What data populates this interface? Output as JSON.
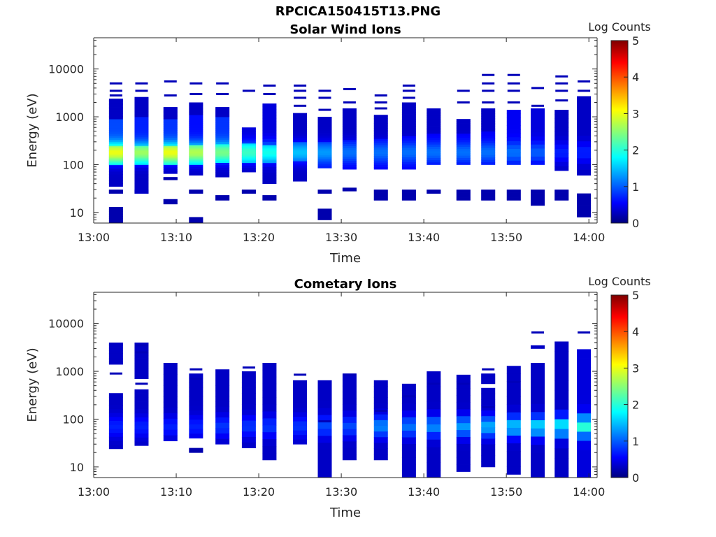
{
  "figure_title": "RPCICA150415T13.PNG",
  "colors": {
    "background": "#ffffff",
    "axes": "#262626",
    "colormap": [
      "#00007f",
      "#0000ff",
      "#00ffff",
      "#ffff00",
      "#ff0000",
      "#7f0000"
    ]
  },
  "chart_data": [
    {
      "type": "heatmap",
      "title": "Solar Wind Ions",
      "xlabel": "Time",
      "ylabel": "Energy (eV)",
      "x_ticks": [
        "13:00",
        "13:10",
        "13:20",
        "13:30",
        "13:40",
        "13:50",
        "14:00"
      ],
      "y_ticks": [
        "10",
        "100",
        "1000",
        "10000"
      ],
      "xlim": [
        "13:00",
        "14:01"
      ],
      "ylim": [
        6,
        45000
      ],
      "y_scale": "log",
      "colorbar": {
        "label": "Log Counts",
        "ticks": [
          "0",
          "1",
          "2",
          "3",
          "4",
          "5"
        ],
        "range": [
          0,
          5
        ]
      },
      "columns": [
        {
          "t": 2.7,
          "bands": [
            [
              6,
              13,
              0.2
            ],
            [
              25,
              30,
              0.2
            ],
            [
              35,
              260,
              0.3
            ],
            [
              100,
              250,
              1.4
            ],
            [
              250,
              900,
              0.9
            ],
            [
              900,
              2400,
              0.3
            ]
          ],
          "lines": [
            2800,
            3500,
            5000
          ],
          "flux": 1.6
        },
        {
          "t": 5.8,
          "bands": [
            [
              25,
              30,
              0.2
            ],
            [
              25,
              220,
              0.3
            ],
            [
              100,
              250,
              1.3
            ],
            [
              250,
              1000,
              0.7
            ],
            [
              1000,
              2600,
              0.3
            ]
          ],
          "lines": [
            3500,
            5000
          ],
          "flux": 1.3
        },
        {
          "t": 9.3,
          "bands": [
            [
              15,
              19,
              0.2
            ],
            [
              48,
              55,
              0.2
            ],
            [
              65,
              250,
              0.3
            ],
            [
              100,
              250,
              1.5
            ],
            [
              250,
              900,
              0.8
            ],
            [
              900,
              1600,
              0.3
            ]
          ],
          "lines": [
            2800,
            5500
          ],
          "flux": 1.5
        },
        {
          "t": 12.4,
          "bands": [
            [
              6,
              8,
              0.2
            ],
            [
              25,
              30,
              0.2
            ],
            [
              60,
              250,
              0.3
            ],
            [
              100,
              260,
              1.3
            ],
            [
              260,
              1100,
              0.6
            ],
            [
              1100,
              2000,
              0.3
            ]
          ],
          "lines": [
            3000,
            5000
          ],
          "flux": 1.4
        },
        {
          "t": 15.6,
          "bands": [
            [
              18,
              23,
              0.2
            ],
            [
              55,
              270,
              0.3
            ],
            [
              110,
              270,
              1.2
            ],
            [
              270,
              1000,
              0.8
            ],
            [
              1000,
              1600,
              0.3
            ]
          ],
          "lines": [
            3000,
            5000
          ],
          "flux": 1.2
        },
        {
          "t": 18.8,
          "bands": [
            [
              25,
              30,
              0.2
            ],
            [
              70,
              280,
              0.3
            ],
            [
              110,
              280,
              1.1
            ],
            [
              280,
              600,
              0.4
            ]
          ],
          "lines": [
            3500
          ],
          "flux": 1.0
        },
        {
          "t": 21.3,
          "bands": [
            [
              18,
              23,
              0.2
            ],
            [
              40,
              260,
              0.3
            ],
            [
              110,
              260,
              0.9
            ],
            [
              260,
              1900,
              0.4
            ]
          ],
          "lines": [
            3000,
            4500
          ],
          "flux": 1.0
        },
        {
          "t": 25.0,
          "bands": [
            [
              45,
              120,
              0.3
            ],
            [
              120,
              300,
              0.7
            ],
            [
              300,
              1200,
              0.3
            ]
          ],
          "lines": [
            1700,
            2500,
            3500,
            4500
          ],
          "flux": 0.8
        },
        {
          "t": 28.0,
          "bands": [
            [
              7,
              12,
              0.2
            ],
            [
              25,
              30,
              0.2
            ],
            [
              85,
              300,
              0.6
            ],
            [
              300,
              1000,
              0.3
            ]
          ],
          "lines": [
            1400,
            2500,
            3500
          ],
          "flux": 0.7
        },
        {
          "t": 31.0,
          "bands": [
            [
              28,
              33,
              0.2
            ],
            [
              80,
              330,
              0.5
            ],
            [
              330,
              1500,
              0.3
            ]
          ],
          "lines": [
            2000,
            3800
          ],
          "flux": 0.6
        },
        {
          "t": 34.8,
          "bands": [
            [
              18,
              30,
              0.2
            ],
            [
              80,
              350,
              0.5
            ],
            [
              350,
              1100,
              0.3
            ]
          ],
          "lines": [
            1500,
            2000,
            2800
          ],
          "flux": 0.6
        },
        {
          "t": 38.2,
          "bands": [
            [
              18,
              30,
              0.2
            ],
            [
              80,
              400,
              0.5
            ],
            [
              400,
              2000,
              0.3
            ]
          ],
          "lines": [
            2500,
            3500,
            4500
          ],
          "flux": 0.6
        },
        {
          "t": 41.2,
          "bands": [
            [
              25,
              30,
              0.2
            ],
            [
              100,
              450,
              0.5
            ],
            [
              450,
              1500,
              0.3
            ]
          ],
          "lines": [],
          "flux": 0.6
        },
        {
          "t": 44.8,
          "bands": [
            [
              18,
              30,
              0.2
            ],
            [
              100,
              450,
              0.5
            ],
            [
              450,
              900,
              0.3
            ]
          ],
          "lines": [
            2000,
            3500
          ],
          "flux": 0.6
        },
        {
          "t": 47.8,
          "bands": [
            [
              18,
              30,
              0.2
            ],
            [
              100,
              500,
              0.5
            ],
            [
              500,
              1500,
              0.3
            ]
          ],
          "lines": [
            2000,
            3500,
            5000,
            7500
          ],
          "flux": 0.6
        },
        {
          "t": 50.9,
          "bands": [
            [
              18,
              30,
              0.2
            ],
            [
              100,
              1400,
              0.5
            ]
          ],
          "lines": [
            2000,
            3500,
            5000,
            7500
          ],
          "flux": 0.6
        },
        {
          "t": 53.8,
          "bands": [
            [
              14,
              30,
              0.2
            ],
            [
              100,
              1500,
              0.4
            ]
          ],
          "lines": [
            1700,
            4000
          ],
          "flux": 0.6
        },
        {
          "t": 56.7,
          "bands": [
            [
              18,
              30,
              0.2
            ],
            [
              75,
              1400,
              0.3
            ]
          ],
          "lines": [
            2200,
            3500,
            5000,
            7000
          ],
          "flux": 0.4
        },
        {
          "t": 59.4,
          "bands": [
            [
              8,
              25,
              0.2
            ],
            [
              60,
              2700,
              0.3
            ]
          ],
          "lines": [
            3500,
            5500
          ],
          "flux": 0.4
        }
      ]
    },
    {
      "type": "heatmap",
      "title": "Cometary Ions",
      "xlabel": "Time",
      "ylabel": "Energy (eV)",
      "x_ticks": [
        "13:00",
        "13:10",
        "13:20",
        "13:30",
        "13:40",
        "13:50",
        "14:00"
      ],
      "y_ticks": [
        "10",
        "100",
        "1000",
        "10000"
      ],
      "xlim": [
        "13:00",
        "14:01"
      ],
      "ylim": [
        6,
        45000
      ],
      "y_scale": "log",
      "colorbar": {
        "label": "Log Counts",
        "ticks": [
          "0",
          "1",
          "2",
          "3",
          "4",
          "5"
        ],
        "range": [
          0,
          5
        ]
      },
      "columns": [
        {
          "t": 2.7,
          "bands": [
            [
              24,
              350,
              0.3
            ],
            [
              1400,
              4000,
              0.3
            ]
          ],
          "lines": [
            900
          ],
          "flux": 0.4
        },
        {
          "t": 5.8,
          "bands": [
            [
              28,
              420,
              0.3
            ],
            [
              700,
              4000,
              0.3
            ]
          ],
          "lines": [
            2500,
            3500,
            550
          ],
          "flux": 0.4
        },
        {
          "t": 9.3,
          "bands": [
            [
              35,
              1500,
              0.3
            ]
          ],
          "lines": [],
          "flux": 0.4
        },
        {
          "t": 12.4,
          "bands": [
            [
              20,
              25,
              0.2
            ],
            [
              40,
              900,
              0.3
            ]
          ],
          "lines": [
            700,
            1100
          ],
          "flux": 0.4
        },
        {
          "t": 15.6,
          "bands": [
            [
              30,
              1100,
              0.3
            ]
          ],
          "lines": [],
          "flux": 0.5
        },
        {
          "t": 18.8,
          "bands": [
            [
              25,
              1000,
              0.3
            ]
          ],
          "lines": [
            1200
          ],
          "flux": 0.5
        },
        {
          "t": 21.3,
          "bands": [
            [
              14,
              1500,
              0.3
            ]
          ],
          "lines": [],
          "flux": 0.5
        },
        {
          "t": 25.0,
          "bands": [
            [
              30,
              650,
              0.3
            ]
          ],
          "lines": [
            850
          ],
          "flux": 0.5
        },
        {
          "t": 28.0,
          "bands": [
            [
              6,
              650,
              0.3
            ]
          ],
          "lines": [
            90
          ],
          "flux": 0.6
        },
        {
          "t": 31.0,
          "bands": [
            [
              14,
              900,
              0.3
            ]
          ],
          "lines": [
            850
          ],
          "flux": 0.6
        },
        {
          "t": 34.8,
          "bands": [
            [
              14,
              650,
              0.3
            ]
          ],
          "lines": [
            150
          ],
          "flux": 0.9
        },
        {
          "t": 38.2,
          "bands": [
            [
              6,
              550,
              0.3
            ]
          ],
          "lines": [
            300
          ],
          "flux": 0.8
        },
        {
          "t": 41.2,
          "bands": [
            [
              6,
              1000,
              0.3
            ]
          ],
          "lines": [
            550
          ],
          "flux": 0.9
        },
        {
          "t": 44.8,
          "bands": [
            [
              8,
              850,
              0.3
            ]
          ],
          "lines": [
            550
          ],
          "flux": 1.0
        },
        {
          "t": 47.8,
          "bands": [
            [
              10,
              450,
              0.3
            ],
            [
              550,
              900,
              0.3
            ]
          ],
          "lines": [
            180,
            1100
          ],
          "flux": 1.1
        },
        {
          "t": 50.9,
          "bands": [
            [
              7,
              1300,
              0.3
            ]
          ],
          "lines": [
            600
          ],
          "flux": 1.2
        },
        {
          "t": 53.8,
          "bands": [
            [
              6,
              1500,
              0.3
            ],
            [
              3000,
              3500,
              0.3
            ]
          ],
          "lines": [
            6500
          ],
          "flux": 1.3
        },
        {
          "t": 56.7,
          "bands": [
            [
              6,
              4200,
              0.3
            ]
          ],
          "lines": [],
          "flux": 1.4
        },
        {
          "t": 59.4,
          "bands": [
            [
              6,
              2900,
              0.4
            ]
          ],
          "lines": [
            6500
          ],
          "flux": 1.6
        }
      ]
    }
  ]
}
